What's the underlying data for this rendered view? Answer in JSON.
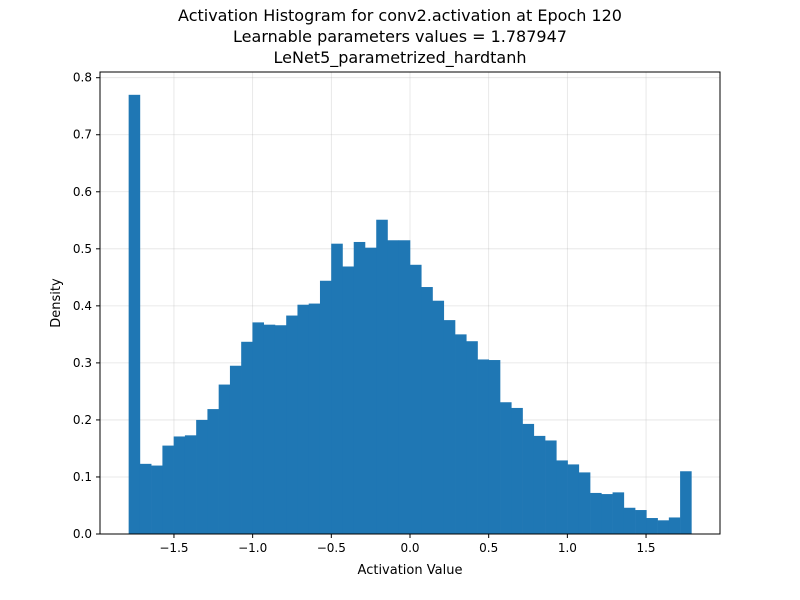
{
  "chart_data": {
    "type": "bar",
    "title_lines": [
      "Activation Histogram for conv2.activation at Epoch 120",
      "Learnable parameters values = 1.787947",
      "LeNet5_parametrized_hardtanh"
    ],
    "xlabel": "Activation Value",
    "ylabel": "Density",
    "xlim": [
      -1.97,
      1.97
    ],
    "ylim": [
      0,
      0.81
    ],
    "xticks": [
      -1.5,
      -1.0,
      -0.5,
      0.0,
      0.5,
      1.0,
      1.5
    ],
    "xtick_labels": [
      "−1.5",
      "−1.0",
      "−0.5",
      "0.0",
      "0.5",
      "1.0",
      "1.5"
    ],
    "yticks": [
      0.0,
      0.1,
      0.2,
      0.3,
      0.4,
      0.5,
      0.6,
      0.7,
      0.8
    ],
    "ytick_labels": [
      "0.0",
      "0.1",
      "0.2",
      "0.3",
      "0.4",
      "0.5",
      "0.6",
      "0.7",
      "0.8"
    ],
    "grid": true,
    "bar_color": "#1f77b4",
    "bin_range": [
      -1.787947,
      1.787947
    ],
    "values": [
      0.77,
      0.123,
      0.12,
      0.155,
      0.171,
      0.173,
      0.2,
      0.219,
      0.262,
      0.295,
      0.337,
      0.371,
      0.367,
      0.366,
      0.383,
      0.402,
      0.404,
      0.444,
      0.509,
      0.469,
      0.512,
      0.502,
      0.551,
      0.515,
      0.515,
      0.472,
      0.433,
      0.409,
      0.375,
      0.35,
      0.338,
      0.306,
      0.305,
      0.231,
      0.221,
      0.193,
      0.172,
      0.164,
      0.129,
      0.122,
      0.108,
      0.072,
      0.07,
      0.073,
      0.046,
      0.042,
      0.028,
      0.024,
      0.029,
      0.11
    ]
  }
}
